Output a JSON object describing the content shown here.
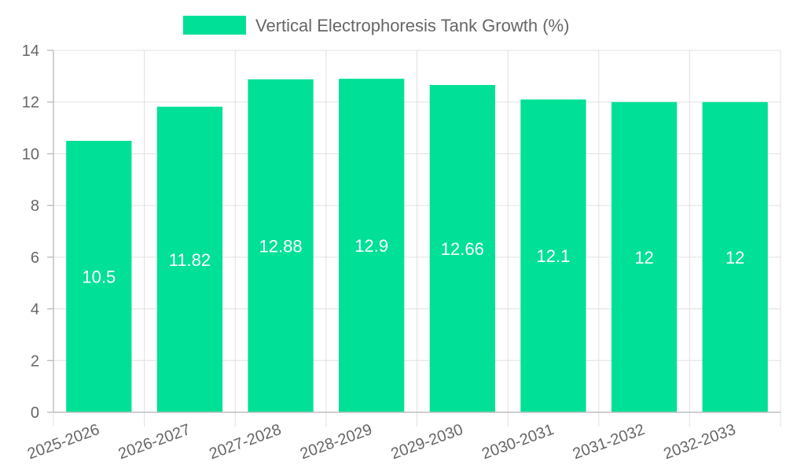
{
  "chart_data": {
    "type": "bar",
    "categories": [
      "2025-2026",
      "2026-2027",
      "2027-2028",
      "2028-2029",
      "2029-2030",
      "2030-2031",
      "2031-2032",
      "2032-2033"
    ],
    "series": [
      {
        "name": "Vertical Electrophoresis Tank Growth (%)",
        "values": [
          10.5,
          11.82,
          12.88,
          12.9,
          12.66,
          12.1,
          12,
          12
        ],
        "color": "#00e096"
      }
    ],
    "data_labels": [
      "10.5",
      "11.82",
      "12.88",
      "12.9",
      "12.66",
      "12.1",
      "12",
      "12"
    ],
    "y_ticks": [
      "0",
      "2",
      "4",
      "6",
      "8",
      "10",
      "12",
      "14"
    ],
    "ylim": [
      0,
      14
    ],
    "y_step": 2,
    "grid": true,
    "legend_position": "top-center",
    "label_position": "center"
  }
}
